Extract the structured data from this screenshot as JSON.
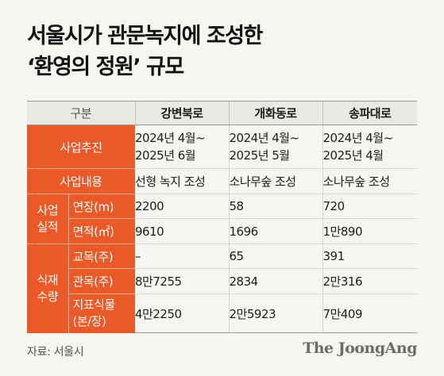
{
  "title": {
    "line1": "서울시가 관문녹지에 조성한",
    "line2": "‘환영의 정원’ 규모"
  },
  "table": {
    "header": {
      "label": "구분",
      "col1": "강변북로",
      "col2": "개화동로",
      "col3": "송파대로"
    },
    "rows": {
      "period": {
        "label": "사업추진",
        "col1_line1": "2024년 4월~",
        "col1_line2": "2025년 6월",
        "col2_line1": "2024년 4월~",
        "col2_line2": "2025년 5월",
        "col3_line1": "2024년 4월~",
        "col3_line2": "2025년 4월"
      },
      "content": {
        "label": "사업내용",
        "col1": "선형 녹지 조성",
        "col2": "소나무숲 조성",
        "col3": "소나무숲 조성"
      },
      "performance": {
        "group_line1": "사업",
        "group_line2": "실적",
        "length": {
          "label": "연장(m)",
          "col1": "2200",
          "col2": "58",
          "col3": "720"
        },
        "area": {
          "label": "면적(㎡)",
          "col1": "9610",
          "col2": "1696",
          "col3": "1만890"
        }
      },
      "planting": {
        "group_line1": "식재",
        "group_line2": "수량",
        "trees": {
          "label": "교목(주)",
          "col1": "–",
          "col2": "65",
          "col3": "391"
        },
        "shrubs": {
          "label": "관목(주)",
          "col1": "8만7255",
          "col2": "2834",
          "col3": "2만316"
        },
        "ground": {
          "label_line1": "지표식물",
          "label_line2": "(본/장)",
          "col1": "4만2250",
          "col2": "2만5923",
          "col3": "7만409"
        }
      }
    }
  },
  "footer": {
    "source": "자료: 서울시",
    "logo": "The JoongAng"
  },
  "colors": {
    "accent": "#ea5a28",
    "background": "#f6f5f0",
    "header_bg": "#e9e8e3"
  }
}
